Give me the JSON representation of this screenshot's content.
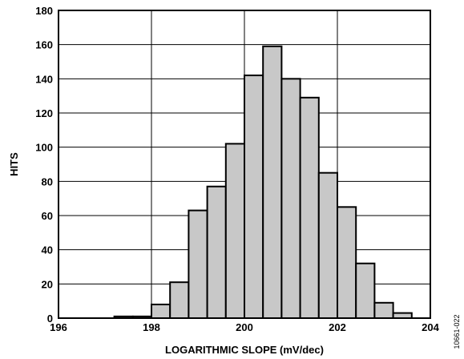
{
  "chart_data": {
    "type": "bar",
    "title": "",
    "xlabel": "LOGARITHMIC SLOPE (mV/dec)",
    "ylabel": "HITS",
    "xlim": [
      196,
      204
    ],
    "ylim": [
      0,
      180
    ],
    "x_ticks": [
      196,
      198,
      200,
      202,
      204
    ],
    "y_ticks": [
      0,
      20,
      40,
      60,
      80,
      100,
      120,
      140,
      160,
      180
    ],
    "grid": true,
    "bin_width": 0.4,
    "bins": [
      {
        "x": 197.2,
        "value": 1
      },
      {
        "x": 197.6,
        "value": 1
      },
      {
        "x": 198.0,
        "value": 8
      },
      {
        "x": 198.4,
        "value": 21
      },
      {
        "x": 198.8,
        "value": 63
      },
      {
        "x": 199.2,
        "value": 77
      },
      {
        "x": 199.6,
        "value": 102
      },
      {
        "x": 200.0,
        "value": 142
      },
      {
        "x": 200.4,
        "value": 159
      },
      {
        "x": 200.8,
        "value": 140
      },
      {
        "x": 201.2,
        "value": 129
      },
      {
        "x": 201.6,
        "value": 85
      },
      {
        "x": 202.0,
        "value": 65
      },
      {
        "x": 202.4,
        "value": 32
      },
      {
        "x": 202.8,
        "value": 9
      },
      {
        "x": 203.2,
        "value": 3
      }
    ],
    "bar_color": "#c8c8c8",
    "edge_color": "#000000"
  },
  "figure_id": "10661-022"
}
